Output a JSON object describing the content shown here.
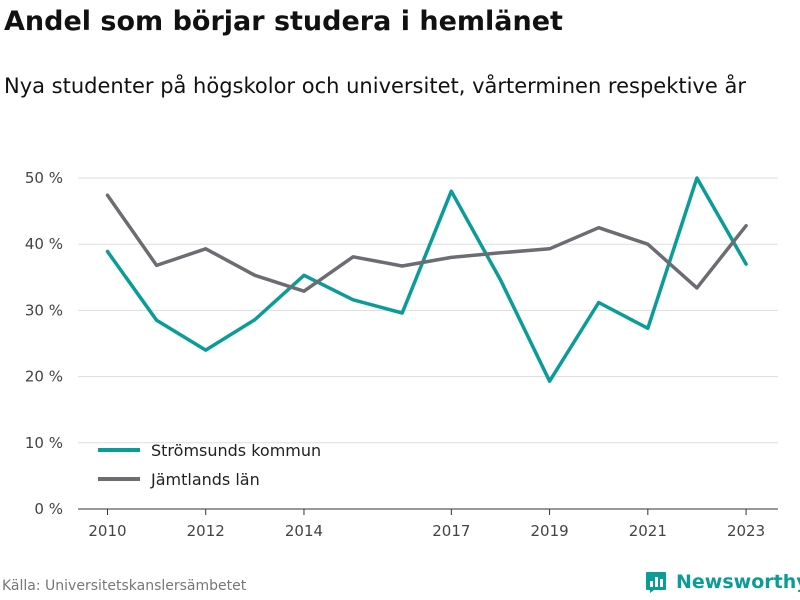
{
  "header": {
    "title": "Andel som börjar studera i hemlänet",
    "subtitle": "Nya studenter på högskolor och universitet, vårterminen respektive år"
  },
  "footer": {
    "source": "Källa: Universitetskanslersämbetet",
    "brand": "Newsworthy",
    "brand_icon": "bar-chart-logo-icon"
  },
  "colors": {
    "teal": "#0a9c96",
    "gray": "#6d6c72",
    "grid": "#dddddd",
    "axis": "#333333"
  },
  "chart_data": {
    "type": "line",
    "x": [
      2010,
      2011,
      2012,
      2013,
      2014,
      2015,
      2016,
      2017,
      2018,
      2019,
      2020,
      2021,
      2022,
      2023
    ],
    "x_ticks": [
      2010,
      2012,
      2014,
      2017,
      2019,
      2021,
      2023
    ],
    "xlim": [
      2009.4,
      2023.65
    ],
    "ylim": [
      0,
      50
    ],
    "y_ticks": [
      0,
      10,
      20,
      30,
      40,
      50
    ],
    "y_tick_labels": [
      "0 %",
      "10 %",
      "20 %",
      "30 %",
      "40 %",
      "50 %"
    ],
    "grid": true,
    "legend_position": "bottom-left",
    "series": [
      {
        "name": "Strömsunds kommun",
        "color": "#0a9c96",
        "values": [
          38.9,
          28.5,
          24.0,
          28.6,
          35.3,
          31.6,
          29.6,
          48.0,
          34.6,
          19.3,
          31.2,
          27.3,
          50.0,
          37.0
        ]
      },
      {
        "name": "Jämtlands län",
        "color": "#6d6c72",
        "values": [
          47.4,
          36.8,
          39.3,
          35.3,
          32.9,
          38.1,
          36.7,
          38.0,
          38.7,
          39.3,
          42.5,
          40.0,
          33.4,
          42.8
        ]
      }
    ]
  }
}
